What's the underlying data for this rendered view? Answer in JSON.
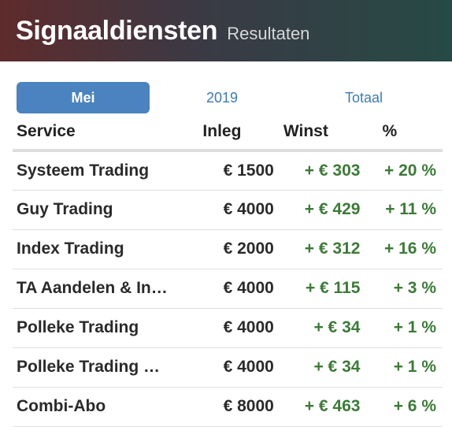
{
  "header": {
    "title": "Signaaldiensten",
    "subtitle": "Resultaten"
  },
  "tabs": [
    {
      "label": "Mei",
      "active": true
    },
    {
      "label": "2019",
      "active": false
    },
    {
      "label": "Totaal",
      "active": false
    }
  ],
  "table": {
    "columns": [
      "Service",
      "Inleg",
      "Winst",
      "%"
    ],
    "rows": [
      {
        "service": "Systeem Trading",
        "inleg": "€ 1500",
        "winst": "+ € 303",
        "pct": "+ 20 %"
      },
      {
        "service": "Guy Trading",
        "inleg": "€ 4000",
        "winst": "+ € 429",
        "pct": "+ 11 %"
      },
      {
        "service": "Index Trading",
        "inleg": "€ 2000",
        "winst": "+ € 312",
        "pct": "+ 16 %"
      },
      {
        "service": "TA Aandelen & In…",
        "inleg": "€ 4000",
        "winst": "+ € 115",
        "pct": "+ 3 %"
      },
      {
        "service": "Polleke Trading",
        "inleg": "€ 4000",
        "winst": "+ € 34",
        "pct": "+ 1 %"
      },
      {
        "service": "Polleke Trading …",
        "inleg": "€ 4000",
        "winst": "+ € 34",
        "pct": "+ 1 %"
      },
      {
        "service": "Combi-Abo",
        "inleg": "€ 8000",
        "winst": "+ € 463",
        "pct": "+ 6 %"
      }
    ]
  },
  "colors": {
    "accent": "#4a83bf",
    "positive": "#3b7b36",
    "header_left": "#5e2b2c",
    "header_right": "#264a45"
  }
}
